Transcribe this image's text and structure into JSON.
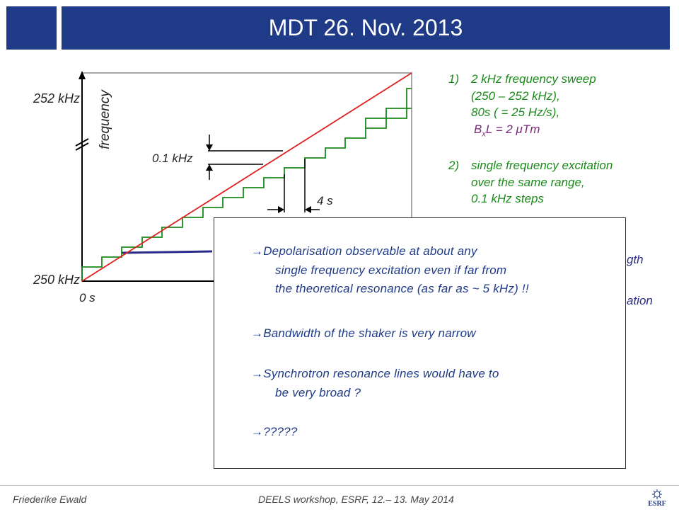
{
  "header": {
    "title": "MDT 26. Nov. 2013"
  },
  "diagram": {
    "y_label": "frequency",
    "y_top": "252 kHz",
    "y_bottom": "250 kHz",
    "x_origin": "0 s",
    "step_height": "0.1 kHz",
    "step_width": "4 s"
  },
  "list": {
    "item1": {
      "num": "1)",
      "lines": [
        "2 kHz frequency sweep",
        "(250 – 252 kHz),",
        "80s ( = 25 Hz/s),"
      ],
      "field_prefix": "B",
      "field_sub": "x",
      "field_suffix": "L = 2 μTm"
    },
    "item2": {
      "num": "2)",
      "lines": [
        "single frequency excitation",
        "over the same range,"
      ],
      "partial_line": "0.1 kHz steps"
    },
    "item3": {
      "visible_fragment_1": "gth",
      "visible_fragment_2": "ation"
    }
  },
  "popup": {
    "arrow": "→",
    "point1": [
      "Depolarisation observable at about any",
      "single frequency excitation even if far from",
      "the theoretical resonance (as far as ~ 5 kHz) !!"
    ],
    "point2": "Bandwidth of the shaker is very narrow",
    "point3": [
      "Synchrotron resonance lines would have to",
      "be very broad ?"
    ],
    "point4": "?????"
  },
  "footer": {
    "author": "Friederike Ewald",
    "event": "DEELS workshop, ESRF, 12.– 13. May 2014",
    "logo_text": "ESRF"
  },
  "colors": {
    "header": "#1f3a86",
    "sweep": "#e02020",
    "steps": "#1a8a1a",
    "excitation": "#2a2a8a",
    "popup_text": "#1f3a86"
  }
}
